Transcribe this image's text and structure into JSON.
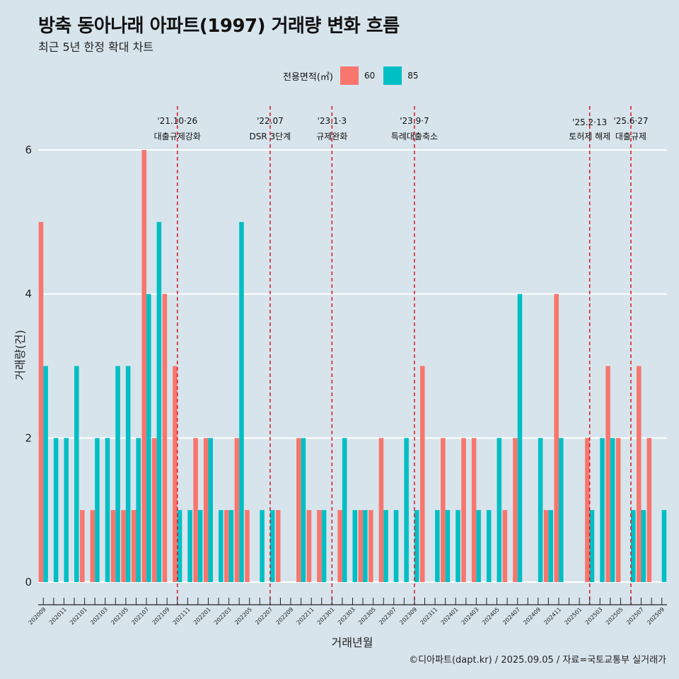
{
  "title": "방축 동아나래 아파트(1997) 거래량 변화 흐름",
  "subtitle": "최근 5년 한정 확대 차트",
  "caption": "©디아파트(dapt.kr) / 2025.09.05 / 자료=국토교통부 실거래가",
  "legend": {
    "title": "전용면적(㎡)",
    "items": [
      {
        "label": "60",
        "color": "#f8766d"
      },
      {
        "label": "85",
        "color": "#00bfc4"
      }
    ]
  },
  "chart_data": {
    "type": "bar",
    "xlabel": "거래년월",
    "ylabel": "거래량(건)",
    "ylim": [
      0,
      6
    ],
    "yticks": [
      0,
      2,
      4,
      6
    ],
    "categories": [
      "202009",
      "202010",
      "202011",
      "202012",
      "202101",
      "202102",
      "202103",
      "202104",
      "202105",
      "202106",
      "202107",
      "202108",
      "202109",
      "202110",
      "202111",
      "202112",
      "202201",
      "202202",
      "202203",
      "202204",
      "202205",
      "202206",
      "202207",
      "202208",
      "202209",
      "202210",
      "202211",
      "202212",
      "202301",
      "202302",
      "202303",
      "202304",
      "202305",
      "202306",
      "202307",
      "202308",
      "202309",
      "202310",
      "202311",
      "202312",
      "202401",
      "202402",
      "202403",
      "202404",
      "202405",
      "202406",
      "202407",
      "202408",
      "202409",
      "202410",
      "202411",
      "202412",
      "202501",
      "202502",
      "202503",
      "202504",
      "202505",
      "202506",
      "202507",
      "202508",
      "202509"
    ],
    "series": [
      {
        "name": "60",
        "color": "#f8766d",
        "values": [
          5,
          0,
          0,
          0,
          1,
          1,
          0,
          1,
          1,
          1,
          6,
          2,
          4,
          3,
          0,
          2,
          2,
          0,
          1,
          2,
          1,
          0,
          0,
          1,
          0,
          2,
          1,
          1,
          0,
          1,
          0,
          1,
          1,
          2,
          0,
          0,
          0,
          3,
          0,
          2,
          0,
          2,
          2,
          0,
          0,
          1,
          2,
          0,
          0,
          1,
          4,
          0,
          0,
          2,
          0,
          3,
          2,
          0,
          3,
          2,
          0
        ]
      },
      {
        "name": "85",
        "color": "#00bfc4",
        "values": [
          3,
          2,
          2,
          3,
          0,
          2,
          2,
          3,
          3,
          2,
          4,
          5,
          0,
          1,
          1,
          1,
          2,
          1,
          1,
          5,
          0,
          1,
          1,
          0,
          0,
          2,
          0,
          1,
          0,
          2,
          1,
          1,
          0,
          1,
          1,
          2,
          1,
          0,
          1,
          1,
          1,
          0,
          1,
          1,
          2,
          0,
          4,
          0,
          2,
          1,
          2,
          0,
          0,
          1,
          2,
          2,
          0,
          1,
          1,
          0,
          1
        ]
      }
    ],
    "events": [
      {
        "month": "202110",
        "date": "'21.10·26",
        "label": "대출규제강화"
      },
      {
        "month": "202207",
        "date": "'22.07",
        "label": "DSR 3단계"
      },
      {
        "month": "202301",
        "date": "'23.1·3",
        "label": "규제완화"
      },
      {
        "month": "202309",
        "date": "'23.9·7",
        "label": "특례대출축소"
      },
      {
        "month": "202502",
        "date": "'25.2·13",
        "label": "토허제 해제"
      },
      {
        "month": "202506",
        "date": "'25.6·27",
        "label": "대출규제"
      }
    ]
  }
}
